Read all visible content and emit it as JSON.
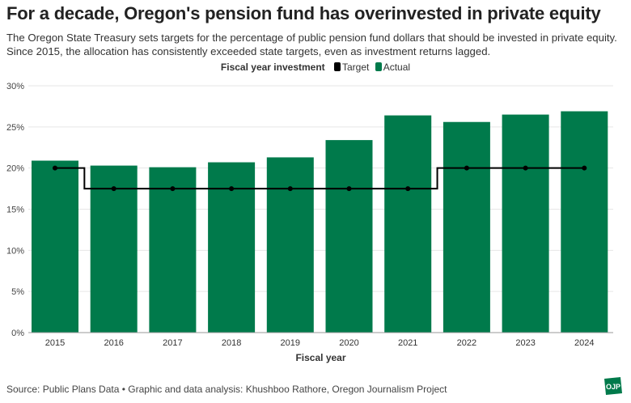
{
  "title": "For a decade, Oregon's pension fund has overinvested in private equity",
  "subtitle_line1": "The Oregon State Treasury sets targets for the percentage of public pension fund dollars that should be invested in private equity.",
  "subtitle_line2": "Since 2015, the allocation has consistently exceeded state targets, even as investment returns lagged.",
  "legend": {
    "title": "Fiscal year investment",
    "target": "Target",
    "actual": "Actual"
  },
  "source": "Source: Public Plans Data • Graphic and data analysis: Khushboo Rathore, Oregon Journalism Project",
  "logo_text": "OJP",
  "colors": {
    "actual": "#007a4b",
    "target": "#000000"
  },
  "chart_data": {
    "type": "bar",
    "title": "For a decade, Oregon's pension fund has overinvested in private equity",
    "xlabel": "Fiscal year",
    "ylabel": "",
    "ylim": [
      0,
      30
    ],
    "yticks": [
      "0%",
      "5%",
      "10%",
      "15%",
      "20%",
      "25%",
      "30%"
    ],
    "ytick_values": [
      0,
      5,
      10,
      15,
      20,
      25,
      30
    ],
    "grid": true,
    "legend_placement": "top-center",
    "categories": [
      "2015",
      "2016",
      "2017",
      "2018",
      "2019",
      "2020",
      "2021",
      "2022",
      "2023",
      "2024"
    ],
    "series": [
      {
        "name": "Actual",
        "type": "bar",
        "values": [
          20.9,
          20.3,
          20.1,
          20.7,
          21.3,
          23.4,
          26.4,
          25.6,
          26.5,
          26.9
        ]
      },
      {
        "name": "Target",
        "type": "step-line",
        "values": [
          20,
          17.5,
          17.5,
          17.5,
          17.5,
          17.5,
          17.5,
          20,
          20,
          20
        ]
      }
    ]
  }
}
